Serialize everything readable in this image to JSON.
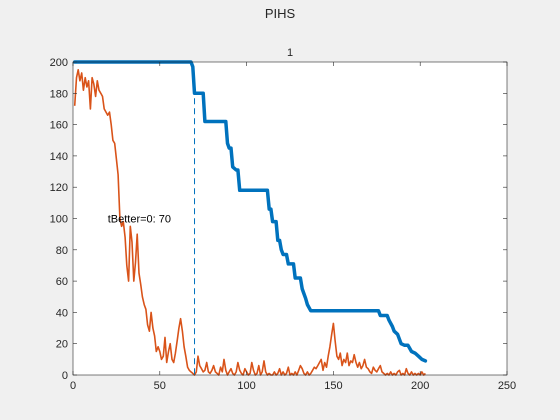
{
  "figure": {
    "title": "PIHS"
  },
  "chart_data": {
    "type": "line",
    "title": "1",
    "xlabel": "",
    "ylabel": "",
    "xlim": [
      0,
      250
    ],
    "ylim": [
      0,
      200
    ],
    "xticks": [
      0,
      50,
      100,
      150,
      200,
      250
    ],
    "yticks": [
      0,
      20,
      40,
      60,
      80,
      100,
      120,
      140,
      160,
      180,
      200
    ],
    "grid": false,
    "colors": {
      "series1": "#0072BD",
      "series2": "#D95319",
      "marker": "#0072BD"
    },
    "annotation": {
      "text": "tBetter=0: 70",
      "x": 20,
      "y": 100
    },
    "vline": {
      "x": 70,
      "style": "dashed"
    },
    "series": [
      {
        "style": "step",
        "points": [
          [
            1,
            200
          ],
          [
            68,
            200
          ],
          [
            69,
            197
          ],
          [
            70,
            180
          ],
          [
            75,
            180
          ],
          [
            76,
            162
          ],
          [
            88,
            162
          ],
          [
            89,
            148
          ],
          [
            90,
            145
          ],
          [
            91,
            145
          ],
          [
            92,
            133
          ],
          [
            94,
            131
          ],
          [
            95,
            131
          ],
          [
            96,
            118
          ],
          [
            112,
            118
          ],
          [
            113,
            106
          ],
          [
            114,
            106
          ],
          [
            115,
            98
          ],
          [
            117,
            98
          ],
          [
            118,
            86
          ],
          [
            119,
            86
          ],
          [
            120,
            80
          ],
          [
            121,
            77
          ],
          [
            123,
            77
          ],
          [
            124,
            71
          ],
          [
            127,
            71
          ],
          [
            128,
            62
          ],
          [
            131,
            62
          ],
          [
            132,
            55
          ],
          [
            133,
            52
          ],
          [
            134,
            49
          ],
          [
            135,
            45
          ],
          [
            137,
            41
          ],
          [
            139,
            41
          ],
          [
            176,
            41
          ],
          [
            177,
            38
          ],
          [
            181,
            38
          ],
          [
            182,
            35
          ],
          [
            184,
            31
          ],
          [
            185,
            28
          ],
          [
            187,
            26
          ],
          [
            189,
            20
          ],
          [
            191,
            19
          ],
          [
            193,
            19
          ],
          [
            195,
            15
          ],
          [
            197,
            14
          ],
          [
            199,
            12
          ],
          [
            201,
            10
          ],
          [
            203,
            9
          ]
        ]
      },
      {
        "style": "noisy",
        "points": [
          [
            1,
            172
          ],
          [
            2,
            190
          ],
          [
            3,
            195
          ],
          [
            4,
            188
          ],
          [
            5,
            193
          ],
          [
            6,
            182
          ],
          [
            7,
            190
          ],
          [
            8,
            184
          ],
          [
            9,
            188
          ],
          [
            10,
            170
          ],
          [
            11,
            190
          ],
          [
            12,
            186
          ],
          [
            13,
            178
          ],
          [
            14,
            188
          ],
          [
            15,
            182
          ],
          [
            16,
            180
          ],
          [
            17,
            178
          ],
          [
            18,
            170
          ],
          [
            19,
            168
          ],
          [
            20,
            166
          ],
          [
            21,
            168
          ],
          [
            22,
            160
          ],
          [
            23,
            150
          ],
          [
            24,
            148
          ],
          [
            25,
            138
          ],
          [
            26,
            128
          ],
          [
            27,
            100
          ],
          [
            28,
            95
          ],
          [
            29,
            98
          ],
          [
            30,
            88
          ],
          [
            31,
            70
          ],
          [
            32,
            60
          ],
          [
            33,
            95
          ],
          [
            34,
            85
          ],
          [
            35,
            60
          ],
          [
            36,
            72
          ],
          [
            37,
            90
          ],
          [
            38,
            65
          ],
          [
            39,
            58
          ],
          [
            40,
            50
          ],
          [
            41,
            45
          ],
          [
            42,
            42
          ],
          [
            43,
            32
          ],
          [
            44,
            28
          ],
          [
            45,
            40
          ],
          [
            46,
            30
          ],
          [
            47,
            25
          ],
          [
            48,
            15
          ],
          [
            49,
            18
          ],
          [
            50,
            15
          ],
          [
            51,
            10
          ],
          [
            52,
            12
          ],
          [
            53,
            24
          ],
          [
            54,
            8
          ],
          [
            55,
            15
          ],
          [
            56,
            20
          ],
          [
            57,
            10
          ],
          [
            58,
            8
          ],
          [
            59,
            14
          ],
          [
            60,
            22
          ],
          [
            61,
            30
          ],
          [
            62,
            36
          ],
          [
            63,
            28
          ],
          [
            64,
            18
          ],
          [
            65,
            12
          ],
          [
            66,
            5
          ],
          [
            67,
            3
          ],
          [
            68,
            2
          ],
          [
            69,
            1
          ],
          [
            70,
            0
          ],
          [
            71,
            2
          ],
          [
            72,
            12
          ],
          [
            73,
            6
          ],
          [
            74,
            4
          ],
          [
            75,
            2
          ],
          [
            76,
            3
          ],
          [
            77,
            8
          ],
          [
            78,
            2
          ],
          [
            79,
            1
          ],
          [
            80,
            3
          ],
          [
            81,
            6
          ],
          [
            82,
            2
          ],
          [
            83,
            1
          ],
          [
            84,
            0
          ],
          [
            85,
            5
          ],
          [
            86,
            2
          ],
          [
            87,
            10
          ],
          [
            88,
            3
          ],
          [
            89,
            0
          ],
          [
            90,
            2
          ],
          [
            91,
            4
          ],
          [
            92,
            1
          ],
          [
            93,
            0
          ],
          [
            94,
            2
          ],
          [
            95,
            8
          ],
          [
            96,
            3
          ],
          [
            97,
            1
          ],
          [
            98,
            0
          ],
          [
            99,
            4
          ],
          [
            100,
            2
          ],
          [
            101,
            0
          ],
          [
            102,
            1
          ],
          [
            103,
            8
          ],
          [
            104,
            3
          ],
          [
            105,
            0
          ],
          [
            106,
            1
          ],
          [
            107,
            6
          ],
          [
            108,
            0
          ],
          [
            109,
            2
          ],
          [
            110,
            9
          ],
          [
            111,
            2
          ],
          [
            112,
            0
          ],
          [
            113,
            1
          ],
          [
            114,
            0
          ],
          [
            115,
            0
          ],
          [
            116,
            2
          ],
          [
            117,
            0
          ],
          [
            118,
            1
          ],
          [
            119,
            4
          ],
          [
            120,
            0
          ],
          [
            121,
            2
          ],
          [
            122,
            0
          ],
          [
            123,
            1
          ],
          [
            124,
            5
          ],
          [
            125,
            0
          ],
          [
            126,
            1
          ],
          [
            127,
            0
          ],
          [
            128,
            2
          ],
          [
            129,
            0
          ],
          [
            130,
            3
          ],
          [
            131,
            6
          ],
          [
            132,
            4
          ],
          [
            133,
            1
          ],
          [
            134,
            0
          ],
          [
            135,
            2
          ],
          [
            136,
            0
          ],
          [
            137,
            1
          ],
          [
            138,
            3
          ],
          [
            139,
            5
          ],
          [
            140,
            4
          ],
          [
            141,
            6
          ],
          [
            142,
            8
          ],
          [
            143,
            10
          ],
          [
            144,
            3
          ],
          [
            145,
            8
          ],
          [
            146,
            5
          ],
          [
            147,
            12
          ],
          [
            148,
            18
          ],
          [
            149,
            26
          ],
          [
            150,
            33
          ],
          [
            151,
            22
          ],
          [
            152,
            12
          ],
          [
            153,
            10
          ],
          [
            154,
            14
          ],
          [
            155,
            6
          ],
          [
            156,
            10
          ],
          [
            157,
            8
          ],
          [
            158,
            14
          ],
          [
            159,
            6
          ],
          [
            160,
            9
          ],
          [
            161,
            8
          ],
          [
            162,
            13
          ],
          [
            163,
            8
          ],
          [
            164,
            5
          ],
          [
            165,
            8
          ],
          [
            166,
            4
          ],
          [
            167,
            6
          ],
          [
            168,
            10
          ],
          [
            169,
            5
          ],
          [
            170,
            4
          ],
          [
            171,
            2
          ],
          [
            172,
            1
          ],
          [
            173,
            5
          ],
          [
            174,
            3
          ],
          [
            175,
            2
          ],
          [
            176,
            4
          ],
          [
            177,
            6
          ],
          [
            178,
            2
          ],
          [
            179,
            1
          ],
          [
            180,
            0
          ],
          [
            181,
            1
          ],
          [
            182,
            0
          ],
          [
            183,
            2
          ],
          [
            184,
            0
          ],
          [
            185,
            1
          ],
          [
            186,
            0
          ],
          [
            187,
            2
          ],
          [
            188,
            3
          ],
          [
            189,
            0
          ],
          [
            190,
            1
          ],
          [
            191,
            0
          ],
          [
            192,
            4
          ],
          [
            193,
            1
          ],
          [
            194,
            0
          ],
          [
            195,
            2
          ],
          [
            196,
            0
          ],
          [
            197,
            1
          ],
          [
            198,
            0
          ],
          [
            199,
            1
          ],
          [
            200,
            0
          ],
          [
            201,
            2
          ],
          [
            202,
            0
          ],
          [
            203,
            1
          ]
        ]
      }
    ]
  }
}
